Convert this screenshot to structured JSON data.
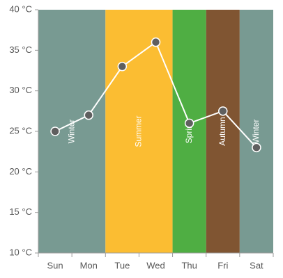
{
  "chart_data": {
    "type": "line",
    "categories": [
      "Sun",
      "Mon",
      "Tue",
      "Wed",
      "Thu",
      "Fri",
      "Sat"
    ],
    "series": [
      {
        "values": [
          25,
          27,
          33,
          36,
          26,
          27.5,
          23
        ]
      }
    ],
    "ylim": [
      10,
      40
    ],
    "yticks": [
      10,
      15,
      20,
      25,
      30,
      35,
      40
    ],
    "ytick_format": "{v} °C",
    "grid": false,
    "bands": [
      {
        "label": "Winter",
        "start": 0,
        "end": 2,
        "color": "#789A92"
      },
      {
        "label": "Summer",
        "start": 2,
        "end": 4,
        "color": "#FBBD32"
      },
      {
        "label": "Spring",
        "start": 4,
        "end": 5,
        "color": "#4FAE43"
      },
      {
        "label": "Autumn",
        "start": 5,
        "end": 6,
        "color": "#805532"
      },
      {
        "label": "Winter",
        "start": 6,
        "end": 7,
        "color": "#789A92"
      }
    ],
    "line_color": "#ffffff",
    "marker_fill": "#5f5f5f",
    "marker_stroke": "#ffffff",
    "axis_color": "#9b9b9b",
    "tick_label_color": "#575757"
  }
}
